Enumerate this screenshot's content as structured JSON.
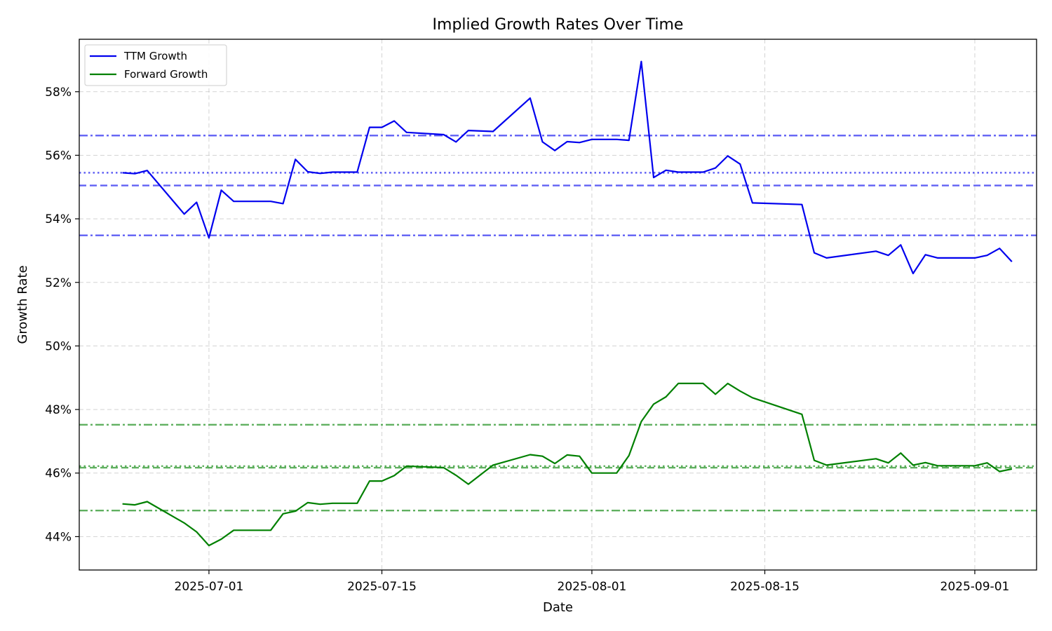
{
  "chart_data": {
    "type": "line",
    "title": "Implied Growth Rates Over Time",
    "xlabel": "Date",
    "ylabel": "Growth Rate",
    "ylim": [
      0.4295,
      0.5965
    ],
    "xlim_days_from_start": [
      -3.5,
      74.0
    ],
    "start_date": "2025-06-24",
    "grid": true,
    "legend_position": "top-left",
    "y_ticks": [
      {
        "value": 0.44,
        "label": "44%"
      },
      {
        "value": 0.46,
        "label": "46%"
      },
      {
        "value": 0.48,
        "label": "48%"
      },
      {
        "value": 0.5,
        "label": "50%"
      },
      {
        "value": 0.52,
        "label": "52%"
      },
      {
        "value": 0.54,
        "label": "54%"
      },
      {
        "value": 0.56,
        "label": "56%"
      },
      {
        "value": 0.58,
        "label": "58%"
      }
    ],
    "x_ticks": [
      {
        "day": 7,
        "label": "2025-07-01"
      },
      {
        "day": 21,
        "label": "2025-07-15"
      },
      {
        "day": 38,
        "label": "2025-08-01"
      },
      {
        "day": 52,
        "label": "2025-08-15"
      },
      {
        "day": 69,
        "label": "2025-09-01"
      }
    ],
    "series": [
      {
        "name": "TTM Growth",
        "color": "#0000ee",
        "points": [
          [
            0,
            0.5545
          ],
          [
            1,
            0.5542
          ],
          [
            2,
            0.5552
          ],
          [
            5,
            0.5415
          ],
          [
            6,
            0.5452
          ],
          [
            7,
            0.534
          ],
          [
            8,
            0.549
          ],
          [
            9,
            0.5455
          ],
          [
            12,
            0.5455
          ],
          [
            13,
            0.5448
          ],
          [
            14,
            0.5587
          ],
          [
            15,
            0.5548
          ],
          [
            16,
            0.5543
          ],
          [
            17,
            0.5547
          ],
          [
            19,
            0.5547
          ],
          [
            20,
            0.5688
          ],
          [
            21,
            0.5688
          ],
          [
            22,
            0.5708
          ],
          [
            23,
            0.5672
          ],
          [
            26,
            0.5665
          ],
          [
            27,
            0.5642
          ],
          [
            28,
            0.5678
          ],
          [
            30,
            0.5675
          ],
          [
            33,
            0.578
          ],
          [
            34,
            0.5642
          ],
          [
            35,
            0.5615
          ],
          [
            36,
            0.5643
          ],
          [
            37,
            0.564
          ],
          [
            38,
            0.565
          ],
          [
            40,
            0.565
          ],
          [
            41,
            0.5647
          ],
          [
            42,
            0.5895
          ],
          [
            43,
            0.553
          ],
          [
            44,
            0.5553
          ],
          [
            45,
            0.5547
          ],
          [
            47,
            0.5547
          ],
          [
            48,
            0.556
          ],
          [
            49,
            0.5598
          ],
          [
            50,
            0.5572
          ],
          [
            51,
            0.545
          ],
          [
            55,
            0.5445
          ],
          [
            56,
            0.5293
          ],
          [
            57,
            0.5277
          ],
          [
            61,
            0.5298
          ],
          [
            62,
            0.5285
          ],
          [
            63,
            0.5318
          ],
          [
            64,
            0.5228
          ],
          [
            65,
            0.5287
          ],
          [
            66,
            0.5277
          ],
          [
            69,
            0.5277
          ],
          [
            70,
            0.5285
          ],
          [
            71,
            0.5307
          ],
          [
            72,
            0.5265
          ]
        ],
        "reference_lines": [
          {
            "value": 0.5662,
            "style": "dashdot"
          },
          {
            "value": 0.5545,
            "style": "dotted"
          },
          {
            "value": 0.5505,
            "style": "dashed"
          },
          {
            "value": 0.5348,
            "style": "dashdot"
          }
        ]
      },
      {
        "name": "Forward Growth",
        "color": "#008000",
        "points": [
          [
            0,
            0.4503
          ],
          [
            1,
            0.45
          ],
          [
            2,
            0.451
          ],
          [
            5,
            0.4443
          ],
          [
            6,
            0.4415
          ],
          [
            7,
            0.4372
          ],
          [
            8,
            0.4392
          ],
          [
            9,
            0.442
          ],
          [
            12,
            0.442
          ],
          [
            13,
            0.4472
          ],
          [
            14,
            0.448
          ],
          [
            15,
            0.4507
          ],
          [
            16,
            0.4502
          ],
          [
            17,
            0.4505
          ],
          [
            19,
            0.4505
          ],
          [
            20,
            0.4575
          ],
          [
            21,
            0.4575
          ],
          [
            22,
            0.4592
          ],
          [
            23,
            0.4622
          ],
          [
            26,
            0.4617
          ],
          [
            27,
            0.4593
          ],
          [
            28,
            0.4565
          ],
          [
            30,
            0.4625
          ],
          [
            33,
            0.4658
          ],
          [
            34,
            0.4653
          ],
          [
            35,
            0.463
          ],
          [
            36,
            0.4657
          ],
          [
            37,
            0.4653
          ],
          [
            38,
            0.46
          ],
          [
            40,
            0.46
          ],
          [
            41,
            0.4655
          ],
          [
            42,
            0.4762
          ],
          [
            43,
            0.4817
          ],
          [
            44,
            0.484
          ],
          [
            45,
            0.4882
          ],
          [
            47,
            0.4882
          ],
          [
            48,
            0.4848
          ],
          [
            49,
            0.4882
          ],
          [
            50,
            0.4858
          ],
          [
            51,
            0.4837
          ],
          [
            55,
            0.4785
          ],
          [
            56,
            0.464
          ],
          [
            57,
            0.4625
          ],
          [
            61,
            0.4645
          ],
          [
            62,
            0.4632
          ],
          [
            63,
            0.4663
          ],
          [
            64,
            0.4625
          ],
          [
            65,
            0.4633
          ],
          [
            66,
            0.4623
          ],
          [
            69,
            0.4623
          ],
          [
            70,
            0.4632
          ],
          [
            71,
            0.4605
          ],
          [
            72,
            0.4613
          ]
        ],
        "reference_lines": [
          {
            "value": 0.4752,
            "style": "dashdot"
          },
          {
            "value": 0.4622,
            "style": "dotted"
          },
          {
            "value": 0.4617,
            "style": "dashed"
          },
          {
            "value": 0.4482,
            "style": "dashdot"
          }
        ]
      }
    ]
  }
}
